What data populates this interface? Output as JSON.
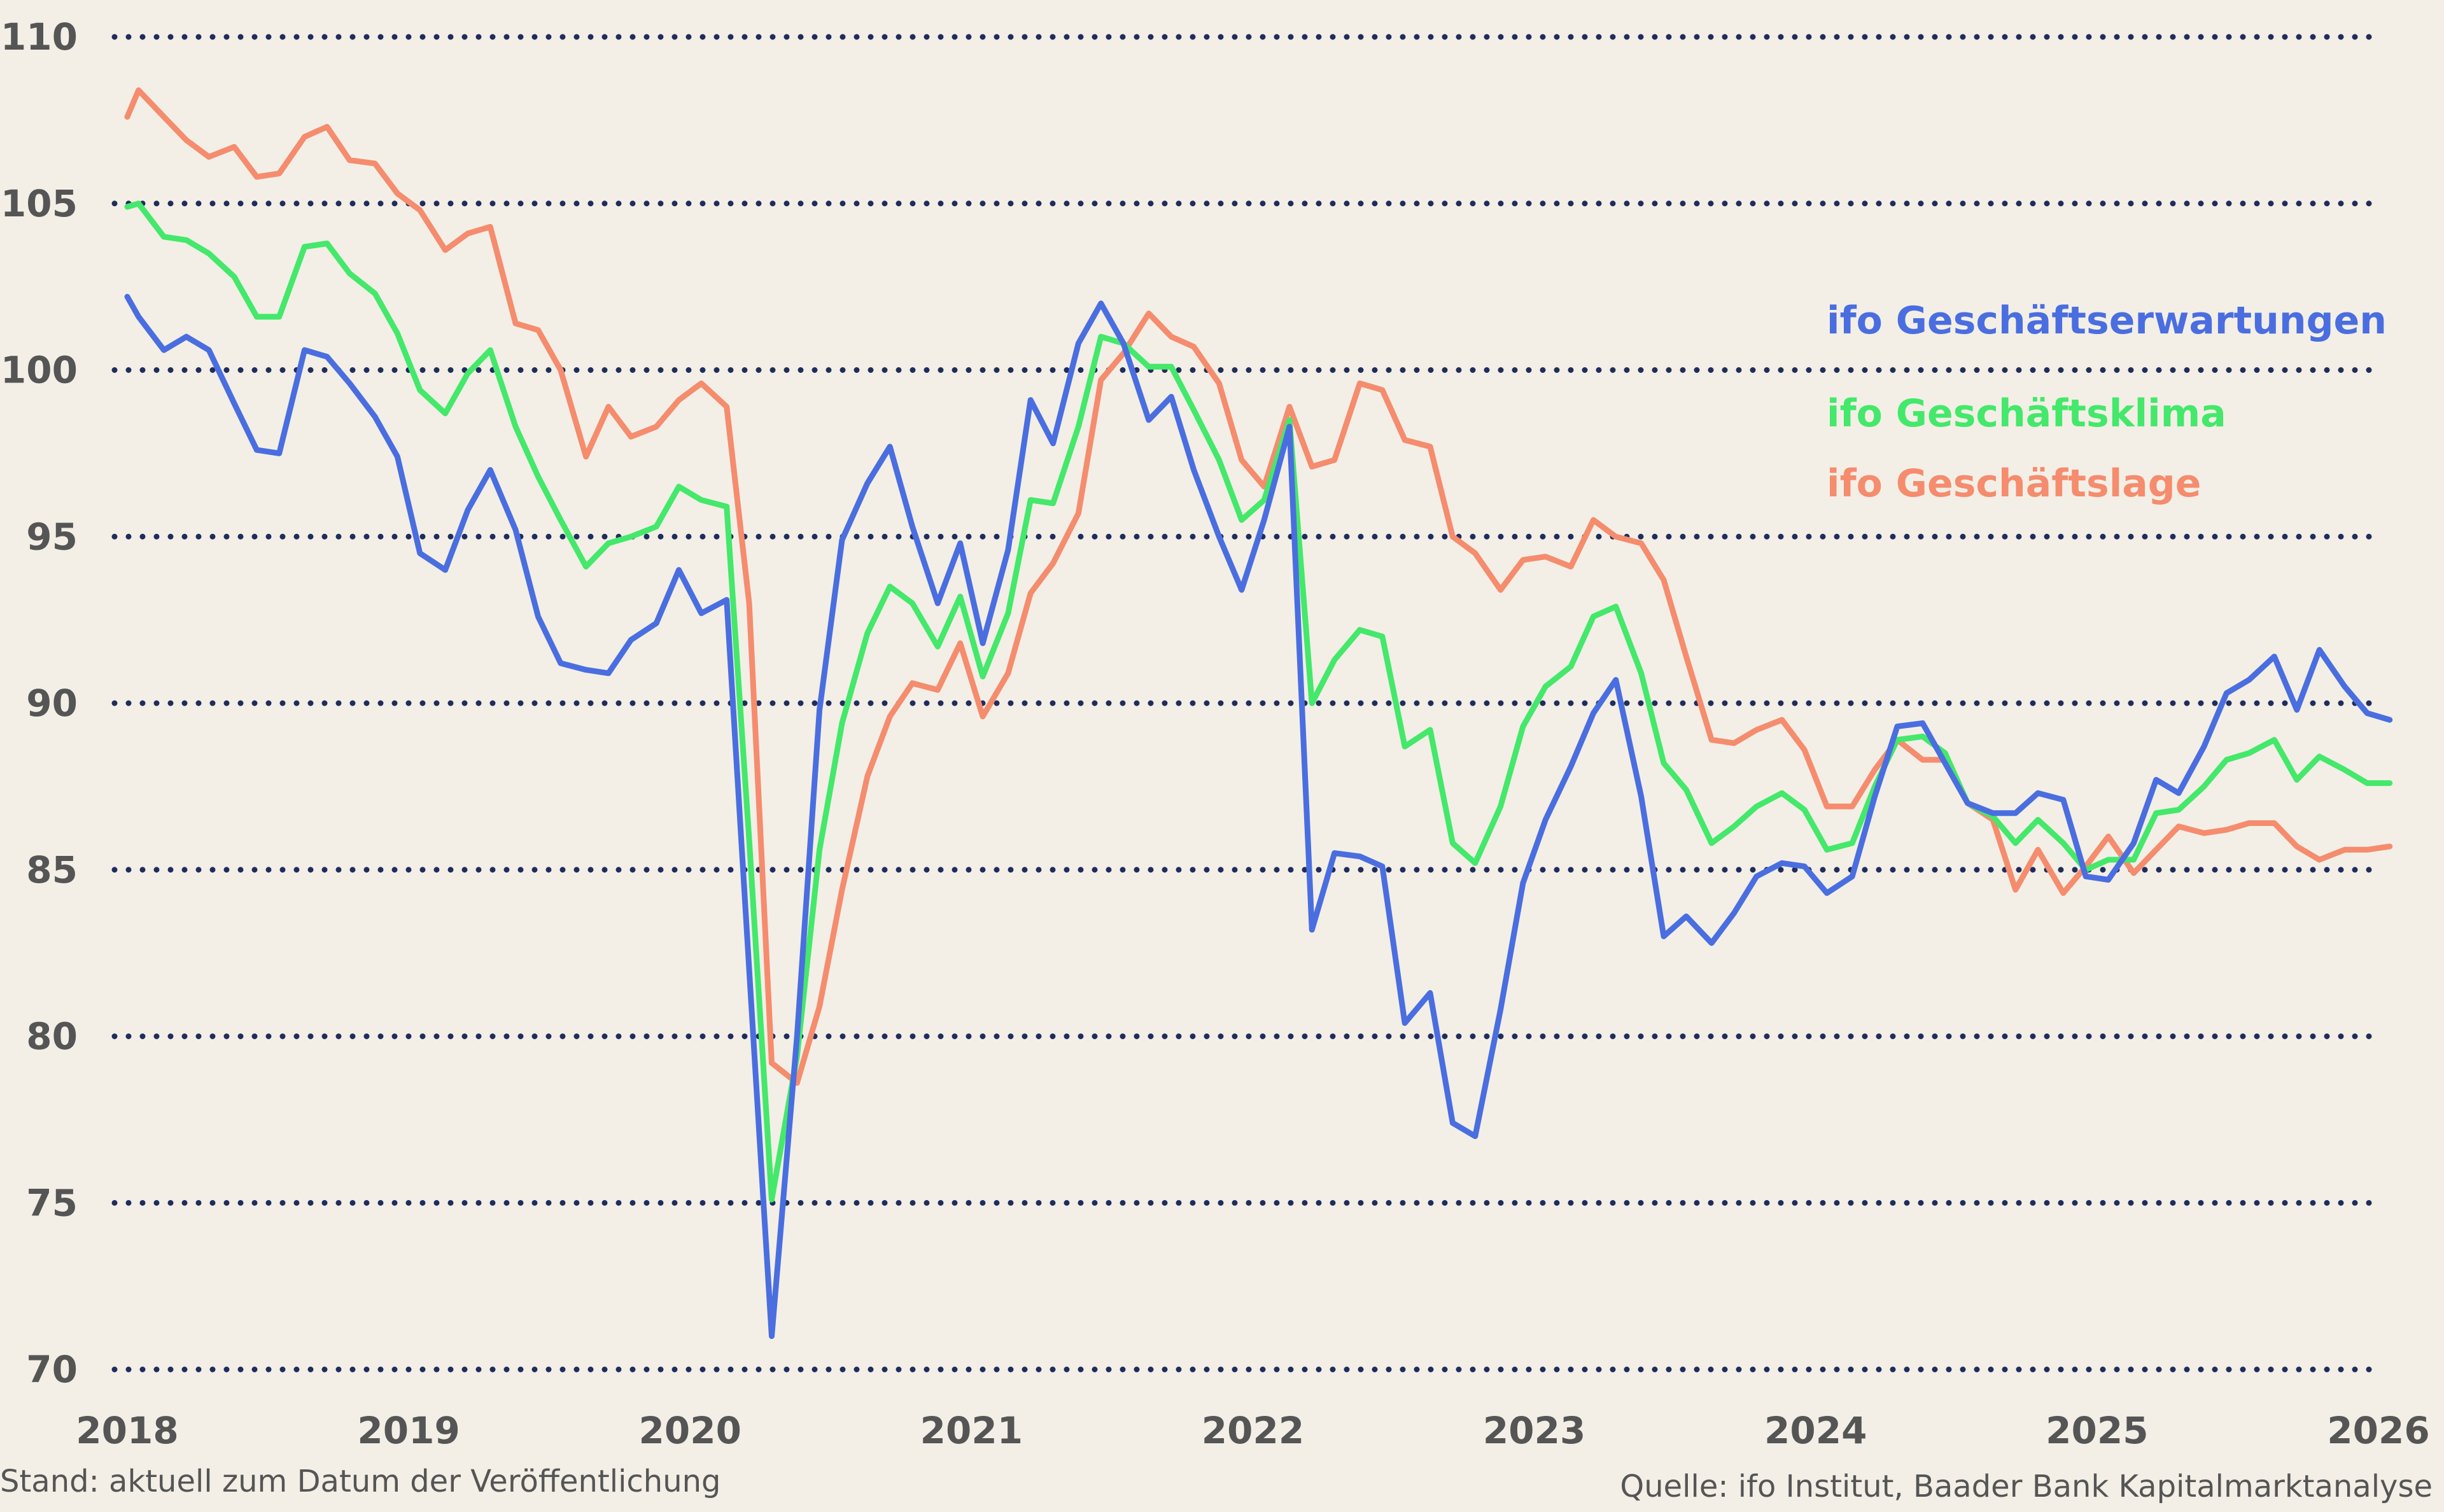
{
  "chart_data": {
    "type": "line",
    "title": "",
    "xlabel": "",
    "ylabel": "",
    "x_range": [
      2018.0,
      2026.45
    ],
    "ylim": [
      70,
      110
    ],
    "y_ticks": [
      "70",
      "75",
      "80",
      "85",
      "90",
      "95",
      "100",
      "105",
      "110"
    ],
    "x_ticks": [
      "2018",
      "2019",
      "2020",
      "2021",
      "2022",
      "2023",
      "2024",
      "2025",
      "2026"
    ],
    "grid": "horizontal dotted",
    "legend": "right, inside plot",
    "series": [
      {
        "name": "ifo Geschäftserwartungen",
        "color": "#4a6ee0",
        "points": [
          [
            2018.0,
            102.2
          ],
          [
            2018.04,
            101.6
          ],
          [
            2018.13,
            100.6
          ],
          [
            2018.21,
            101.0
          ],
          [
            2018.29,
            100.6
          ],
          [
            2018.38,
            99.0
          ],
          [
            2018.46,
            97.6
          ],
          [
            2018.54,
            97.5
          ],
          [
            2018.63,
            100.6
          ],
          [
            2018.71,
            100.4
          ],
          [
            2018.79,
            99.6
          ],
          [
            2018.88,
            98.6
          ],
          [
            2018.96,
            97.4
          ],
          [
            2019.04,
            94.5
          ],
          [
            2019.13,
            94.0
          ],
          [
            2019.21,
            95.8
          ],
          [
            2019.29,
            97.0
          ],
          [
            2019.38,
            95.2
          ],
          [
            2019.46,
            92.6
          ],
          [
            2019.54,
            91.2
          ],
          [
            2019.63,
            91.0
          ],
          [
            2019.71,
            90.9
          ],
          [
            2019.79,
            91.9
          ],
          [
            2019.88,
            92.4
          ],
          [
            2019.96,
            94.0
          ],
          [
            2020.04,
            92.7
          ],
          [
            2020.13,
            93.1
          ],
          [
            2020.21,
            82.0
          ],
          [
            2020.29,
            71.0
          ],
          [
            2020.38,
            80.0
          ],
          [
            2020.46,
            89.8
          ],
          [
            2020.54,
            94.9
          ],
          [
            2020.63,
            96.6
          ],
          [
            2020.71,
            97.7
          ],
          [
            2020.79,
            95.3
          ],
          [
            2020.88,
            93.0
          ],
          [
            2020.96,
            94.8
          ],
          [
            2021.04,
            91.8
          ],
          [
            2021.13,
            94.6
          ],
          [
            2021.21,
            99.1
          ],
          [
            2021.29,
            97.8
          ],
          [
            2021.38,
            100.8
          ],
          [
            2021.46,
            102.0
          ],
          [
            2021.54,
            100.8
          ],
          [
            2021.63,
            98.5
          ],
          [
            2021.71,
            99.2
          ],
          [
            2021.79,
            97.0
          ],
          [
            2021.88,
            95.0
          ],
          [
            2021.96,
            93.4
          ],
          [
            2022.04,
            95.5
          ],
          [
            2022.13,
            98.3
          ],
          [
            2022.21,
            83.2
          ],
          [
            2022.29,
            85.5
          ],
          [
            2022.38,
            85.4
          ],
          [
            2022.46,
            85.1
          ],
          [
            2022.54,
            80.4
          ],
          [
            2022.63,
            81.3
          ],
          [
            2022.71,
            77.4
          ],
          [
            2022.79,
            77.0
          ],
          [
            2022.88,
            80.8
          ],
          [
            2022.96,
            84.6
          ],
          [
            2023.04,
            86.5
          ],
          [
            2023.13,
            88.1
          ],
          [
            2023.21,
            89.7
          ],
          [
            2023.29,
            90.7
          ],
          [
            2023.38,
            87.2
          ],
          [
            2023.46,
            83.0
          ],
          [
            2023.54,
            83.6
          ],
          [
            2023.63,
            82.8
          ],
          [
            2023.71,
            83.7
          ],
          [
            2023.79,
            84.8
          ],
          [
            2023.88,
            85.2
          ],
          [
            2023.96,
            85.1
          ],
          [
            2024.04,
            84.3
          ],
          [
            2024.13,
            84.8
          ],
          [
            2024.21,
            87.2
          ],
          [
            2024.29,
            89.3
          ],
          [
            2024.38,
            89.4
          ],
          [
            2024.46,
            88.2
          ],
          [
            2024.54,
            87.0
          ],
          [
            2024.63,
            86.7
          ],
          [
            2024.71,
            86.7
          ],
          [
            2024.79,
            87.3
          ],
          [
            2024.88,
            87.1
          ],
          [
            2024.96,
            84.8
          ],
          [
            2025.04,
            84.7
          ],
          [
            2025.13,
            85.8
          ],
          [
            2025.21,
            87.7
          ],
          [
            2025.29,
            87.3
          ],
          [
            2025.38,
            88.7
          ],
          [
            2025.46,
            90.3
          ],
          [
            2025.54,
            90.7
          ],
          [
            2025.63,
            91.4
          ],
          [
            2025.71,
            89.8
          ],
          [
            2025.79,
            91.6
          ],
          [
            2025.88,
            90.5
          ],
          [
            2025.96,
            89.7
          ],
          [
            2026.04,
            89.5
          ]
        ]
      },
      {
        "name": "ifo Geschäftsklima",
        "color": "#44e86a",
        "points": [
          [
            2018.0,
            104.9
          ],
          [
            2018.04,
            105.0
          ],
          [
            2018.13,
            104.0
          ],
          [
            2018.21,
            103.9
          ],
          [
            2018.29,
            103.5
          ],
          [
            2018.38,
            102.8
          ],
          [
            2018.46,
            101.6
          ],
          [
            2018.54,
            101.6
          ],
          [
            2018.63,
            103.7
          ],
          [
            2018.71,
            103.8
          ],
          [
            2018.79,
            102.9
          ],
          [
            2018.88,
            102.3
          ],
          [
            2018.96,
            101.1
          ],
          [
            2019.04,
            99.4
          ],
          [
            2019.13,
            98.7
          ],
          [
            2019.21,
            99.9
          ],
          [
            2019.29,
            100.6
          ],
          [
            2019.38,
            98.3
          ],
          [
            2019.46,
            96.8
          ],
          [
            2019.54,
            95.5
          ],
          [
            2019.63,
            94.1
          ],
          [
            2019.71,
            94.8
          ],
          [
            2019.79,
            95.0
          ],
          [
            2019.88,
            95.3
          ],
          [
            2019.96,
            96.5
          ],
          [
            2020.04,
            96.1
          ],
          [
            2020.13,
            95.9
          ],
          [
            2020.21,
            85.9
          ],
          [
            2020.29,
            75.1
          ],
          [
            2020.38,
            79.4
          ],
          [
            2020.46,
            85.6
          ],
          [
            2020.54,
            89.4
          ],
          [
            2020.63,
            92.1
          ],
          [
            2020.71,
            93.5
          ],
          [
            2020.79,
            93.0
          ],
          [
            2020.88,
            91.7
          ],
          [
            2020.96,
            93.2
          ],
          [
            2021.04,
            90.8
          ],
          [
            2021.13,
            92.7
          ],
          [
            2021.21,
            96.1
          ],
          [
            2021.29,
            96.0
          ],
          [
            2021.38,
            98.3
          ],
          [
            2021.46,
            101.0
          ],
          [
            2021.54,
            100.8
          ],
          [
            2021.63,
            100.1
          ],
          [
            2021.71,
            100.1
          ],
          [
            2021.79,
            98.8
          ],
          [
            2021.88,
            97.3
          ],
          [
            2021.96,
            95.5
          ],
          [
            2022.04,
            96.1
          ],
          [
            2022.13,
            98.5
          ],
          [
            2022.21,
            90.0
          ],
          [
            2022.29,
            91.3
          ],
          [
            2022.38,
            92.2
          ],
          [
            2022.46,
            92.0
          ],
          [
            2022.54,
            88.7
          ],
          [
            2022.63,
            89.2
          ],
          [
            2022.71,
            85.8
          ],
          [
            2022.79,
            85.2
          ],
          [
            2022.88,
            86.9
          ],
          [
            2022.96,
            89.3
          ],
          [
            2023.04,
            90.5
          ],
          [
            2023.13,
            91.1
          ],
          [
            2023.21,
            92.6
          ],
          [
            2023.29,
            92.9
          ],
          [
            2023.38,
            90.9
          ],
          [
            2023.46,
            88.2
          ],
          [
            2023.54,
            87.4
          ],
          [
            2023.63,
            85.8
          ],
          [
            2023.71,
            86.3
          ],
          [
            2023.79,
            86.9
          ],
          [
            2023.88,
            87.3
          ],
          [
            2023.96,
            86.8
          ],
          [
            2024.04,
            85.6
          ],
          [
            2024.13,
            85.8
          ],
          [
            2024.21,
            87.5
          ],
          [
            2024.29,
            88.9
          ],
          [
            2024.38,
            89.0
          ],
          [
            2024.46,
            88.5
          ],
          [
            2024.54,
            87.0
          ],
          [
            2024.63,
            86.6
          ],
          [
            2024.71,
            85.8
          ],
          [
            2024.79,
            86.5
          ],
          [
            2024.88,
            85.8
          ],
          [
            2024.96,
            85.0
          ],
          [
            2025.04,
            85.3
          ],
          [
            2025.13,
            85.3
          ],
          [
            2025.21,
            86.7
          ],
          [
            2025.29,
            86.8
          ],
          [
            2025.38,
            87.5
          ],
          [
            2025.46,
            88.3
          ],
          [
            2025.54,
            88.5
          ],
          [
            2025.63,
            88.9
          ],
          [
            2025.71,
            87.7
          ],
          [
            2025.79,
            88.4
          ],
          [
            2025.88,
            88.0
          ],
          [
            2025.96,
            87.6
          ],
          [
            2026.04,
            87.6
          ]
        ]
      },
      {
        "name": "ifo Geschäftslage",
        "color": "#f58c6e",
        "points": [
          [
            2018.0,
            107.6
          ],
          [
            2018.04,
            108.4
          ],
          [
            2018.13,
            107.6
          ],
          [
            2018.21,
            106.9
          ],
          [
            2018.29,
            106.4
          ],
          [
            2018.38,
            106.7
          ],
          [
            2018.46,
            105.8
          ],
          [
            2018.54,
            105.9
          ],
          [
            2018.63,
            107.0
          ],
          [
            2018.71,
            107.3
          ],
          [
            2018.79,
            106.3
          ],
          [
            2018.88,
            106.2
          ],
          [
            2018.96,
            105.3
          ],
          [
            2019.04,
            104.8
          ],
          [
            2019.13,
            103.6
          ],
          [
            2019.21,
            104.1
          ],
          [
            2019.29,
            104.3
          ],
          [
            2019.38,
            101.4
          ],
          [
            2019.46,
            101.2
          ],
          [
            2019.54,
            100.0
          ],
          [
            2019.63,
            97.4
          ],
          [
            2019.71,
            98.9
          ],
          [
            2019.79,
            98.0
          ],
          [
            2019.88,
            98.3
          ],
          [
            2019.96,
            99.1
          ],
          [
            2020.04,
            99.6
          ],
          [
            2020.13,
            98.9
          ],
          [
            2020.21,
            93.0
          ],
          [
            2020.29,
            79.2
          ],
          [
            2020.38,
            78.6
          ],
          [
            2020.46,
            80.9
          ],
          [
            2020.54,
            84.4
          ],
          [
            2020.63,
            87.8
          ],
          [
            2020.71,
            89.6
          ],
          [
            2020.79,
            90.6
          ],
          [
            2020.88,
            90.4
          ],
          [
            2020.96,
            91.8
          ],
          [
            2021.04,
            89.6
          ],
          [
            2021.13,
            90.9
          ],
          [
            2021.21,
            93.3
          ],
          [
            2021.29,
            94.2
          ],
          [
            2021.38,
            95.7
          ],
          [
            2021.46,
            99.7
          ],
          [
            2021.54,
            100.5
          ],
          [
            2021.63,
            101.7
          ],
          [
            2021.71,
            101.0
          ],
          [
            2021.79,
            100.7
          ],
          [
            2021.88,
            99.6
          ],
          [
            2021.96,
            97.3
          ],
          [
            2022.04,
            96.5
          ],
          [
            2022.13,
            98.9
          ],
          [
            2022.21,
            97.1
          ],
          [
            2022.29,
            97.3
          ],
          [
            2022.38,
            99.6
          ],
          [
            2022.46,
            99.4
          ],
          [
            2022.54,
            97.9
          ],
          [
            2022.63,
            97.7
          ],
          [
            2022.71,
            95.0
          ],
          [
            2022.79,
            94.5
          ],
          [
            2022.88,
            93.4
          ],
          [
            2022.96,
            94.3
          ],
          [
            2023.04,
            94.4
          ],
          [
            2023.13,
            94.1
          ],
          [
            2023.21,
            95.5
          ],
          [
            2023.29,
            95.0
          ],
          [
            2023.38,
            94.8
          ],
          [
            2023.46,
            93.7
          ],
          [
            2023.54,
            91.4
          ],
          [
            2023.63,
            88.9
          ],
          [
            2023.71,
            88.8
          ],
          [
            2023.79,
            89.2
          ],
          [
            2023.88,
            89.5
          ],
          [
            2023.96,
            88.6
          ],
          [
            2024.04,
            86.9
          ],
          [
            2024.13,
            86.9
          ],
          [
            2024.21,
            88.0
          ],
          [
            2024.29,
            88.9
          ],
          [
            2024.38,
            88.3
          ],
          [
            2024.46,
            88.3
          ],
          [
            2024.54,
            87.0
          ],
          [
            2024.63,
            86.5
          ],
          [
            2024.71,
            84.4
          ],
          [
            2024.79,
            85.6
          ],
          [
            2024.88,
            84.3
          ],
          [
            2024.96,
            85.1
          ],
          [
            2025.04,
            86.0
          ],
          [
            2025.13,
            84.9
          ],
          [
            2025.21,
            85.6
          ],
          [
            2025.29,
            86.3
          ],
          [
            2025.38,
            86.1
          ],
          [
            2025.46,
            86.2
          ],
          [
            2025.54,
            86.4
          ],
          [
            2025.63,
            86.4
          ],
          [
            2025.71,
            85.7
          ],
          [
            2025.79,
            85.3
          ],
          [
            2025.88,
            85.6
          ],
          [
            2025.96,
            85.6
          ],
          [
            2026.04,
            85.7
          ]
        ]
      }
    ]
  },
  "footnotes": {
    "left": "Stand: aktuell zum Datum der Veröffentlichung",
    "right": "Quelle: ifo Institut, Baader Bank Kapitalmarktanalyse"
  }
}
